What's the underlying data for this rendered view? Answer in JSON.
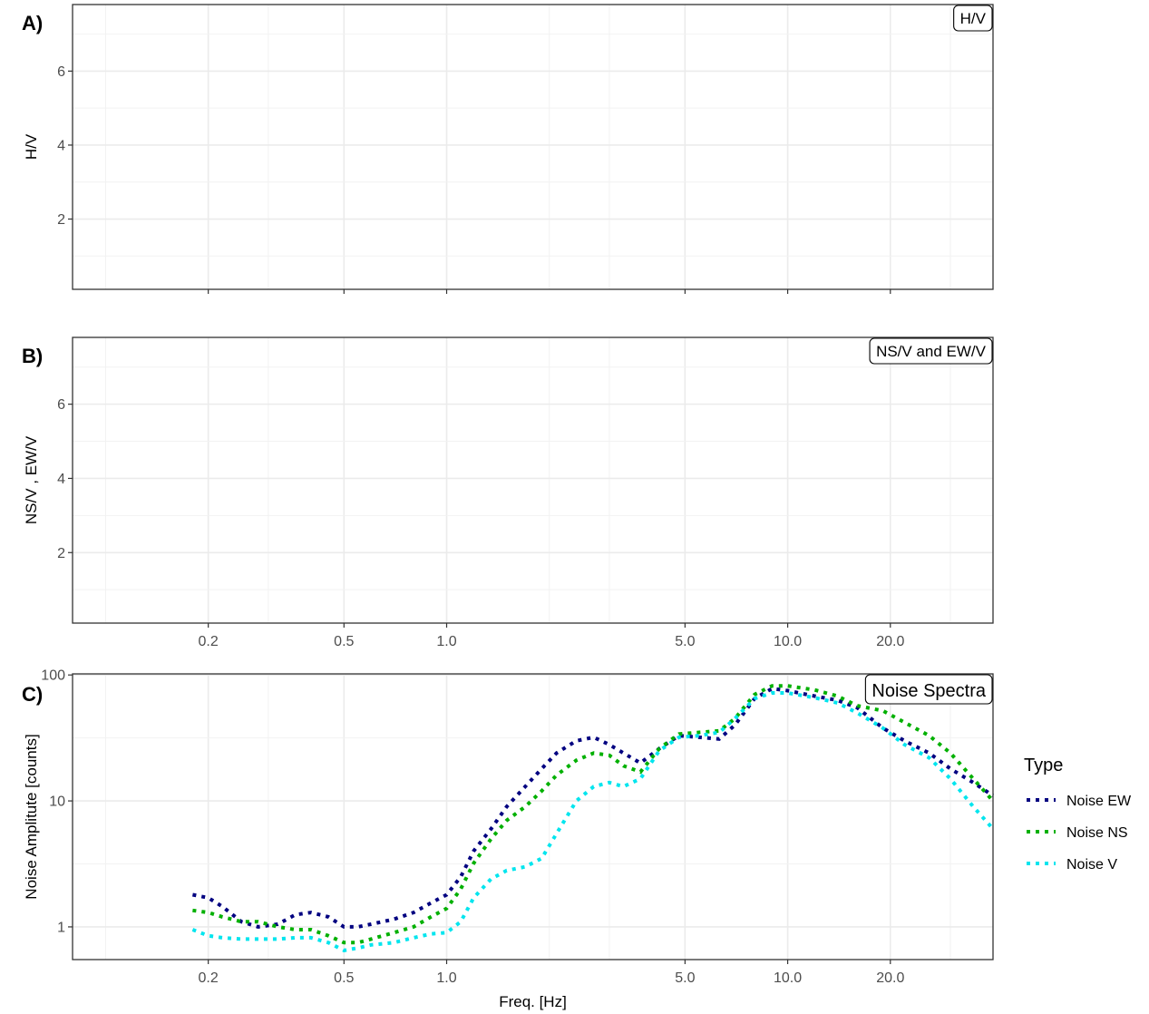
{
  "chart_data": [
    {
      "type": "line",
      "panel_label": "A)",
      "strip": "H/V",
      "ylabel": "H/V",
      "xlabel": "",
      "x_scale": "log",
      "xlim": [
        0.08,
        40
      ],
      "ylim": [
        0.1,
        7.8
      ],
      "yticks": [
        2,
        4,
        6
      ],
      "xticks": [],
      "series": []
    },
    {
      "type": "line",
      "panel_label": "B)",
      "strip": "NS/V and EW/V",
      "ylabel": "NS/V , EW/V",
      "xlabel": "",
      "x_scale": "log",
      "xlim": [
        0.08,
        40
      ],
      "ylim": [
        0.1,
        7.8
      ],
      "yticks": [
        2,
        4,
        6
      ],
      "xticks": [
        "0.2",
        "0.5",
        "1.0",
        "5.0",
        "10.0",
        "20.0"
      ],
      "series": []
    },
    {
      "type": "line",
      "panel_label": "C)",
      "strip": "Noise Spectra",
      "ylabel": "Noise Amplitute [counts]",
      "xlabel": "Freq. [Hz]",
      "x_scale": "log",
      "y_scale": "log",
      "xlim": [
        0.08,
        40
      ],
      "ylim": [
        0.55,
        102
      ],
      "yticks": [
        "1",
        "10",
        "100"
      ],
      "xticks": [
        "0.2",
        "0.5",
        "1.0",
        "5.0",
        "10.0",
        "20.0"
      ],
      "legend": {
        "title": "Type",
        "position": "right"
      },
      "series": [
        {
          "name": "Noise EW",
          "color": "#000080",
          "x": [
            0.18,
            0.2,
            0.22,
            0.25,
            0.28,
            0.32,
            0.36,
            0.4,
            0.45,
            0.5,
            0.55,
            0.6,
            0.7,
            0.8,
            0.9,
            1.0,
            1.1,
            1.2,
            1.35,
            1.5,
            1.7,
            1.9,
            2.1,
            2.4,
            2.7,
            3.0,
            3.3,
            3.7,
            4.2,
            4.8,
            5.5,
            6.3,
            7.0,
            8.0,
            9.0,
            10.0,
            12.0,
            14.0,
            16.0,
            19.0,
            22.0,
            26.0,
            30.0,
            35.0,
            40.0
          ],
          "y": [
            1.8,
            1.7,
            1.45,
            1.1,
            1.0,
            1.05,
            1.25,
            1.3,
            1.2,
            1.0,
            1.0,
            1.05,
            1.15,
            1.3,
            1.55,
            1.8,
            2.5,
            4.0,
            6.0,
            9.0,
            13,
            18,
            24,
            30,
            32,
            28,
            24,
            20,
            26,
            33,
            32,
            31,
            40,
            65,
            78,
            75,
            68,
            63,
            55,
            38,
            30,
            24,
            18,
            14,
            11
          ]
        },
        {
          "name": "Noise NS",
          "color": "#00b000",
          "x": [
            0.18,
            0.2,
            0.22,
            0.25,
            0.28,
            0.32,
            0.36,
            0.4,
            0.45,
            0.5,
            0.55,
            0.6,
            0.7,
            0.8,
            0.9,
            1.0,
            1.1,
            1.2,
            1.35,
            1.5,
            1.7,
            1.9,
            2.1,
            2.4,
            2.7,
            3.0,
            3.3,
            3.7,
            4.2,
            4.8,
            5.5,
            6.3,
            7.0,
            8.0,
            9.0,
            10.0,
            12.0,
            14.0,
            16.0,
            19.0,
            22.0,
            26.0,
            30.0,
            35.0,
            40.0
          ],
          "y": [
            1.35,
            1.3,
            1.2,
            1.1,
            1.1,
            1.0,
            0.95,
            0.95,
            0.85,
            0.75,
            0.75,
            0.8,
            0.9,
            1.0,
            1.2,
            1.4,
            2.0,
            3.2,
            5.0,
            7.0,
            9.0,
            12,
            16,
            21,
            24,
            23,
            19,
            17,
            26,
            34,
            35,
            36,
            45,
            70,
            82,
            82,
            76,
            68,
            57,
            52,
            42,
            33,
            24,
            15,
            10
          ]
        },
        {
          "name": "Noise V",
          "color": "#00e5ee",
          "x": [
            0.18,
            0.2,
            0.22,
            0.25,
            0.28,
            0.32,
            0.36,
            0.4,
            0.45,
            0.5,
            0.55,
            0.6,
            0.7,
            0.8,
            0.9,
            1.0,
            1.1,
            1.2,
            1.35,
            1.5,
            1.7,
            1.9,
            2.1,
            2.4,
            2.7,
            3.0,
            3.3,
            3.7,
            4.2,
            4.8,
            5.5,
            6.3,
            7.0,
            8.0,
            9.0,
            10.0,
            12.0,
            14.0,
            16.0,
            19.0,
            22.0,
            26.0,
            30.0,
            35.0,
            40.0
          ],
          "y": [
            0.95,
            0.85,
            0.82,
            0.8,
            0.8,
            0.8,
            0.82,
            0.82,
            0.75,
            0.65,
            0.68,
            0.72,
            0.75,
            0.82,
            0.88,
            0.9,
            1.1,
            1.7,
            2.4,
            2.8,
            3.0,
            3.5,
            5.5,
            10,
            13,
            14,
            13,
            15,
            25,
            32,
            33,
            35,
            45,
            65,
            72,
            72,
            66,
            60,
            50,
            38,
            28,
            22,
            15,
            9,
            6
          ]
        }
      ]
    }
  ]
}
